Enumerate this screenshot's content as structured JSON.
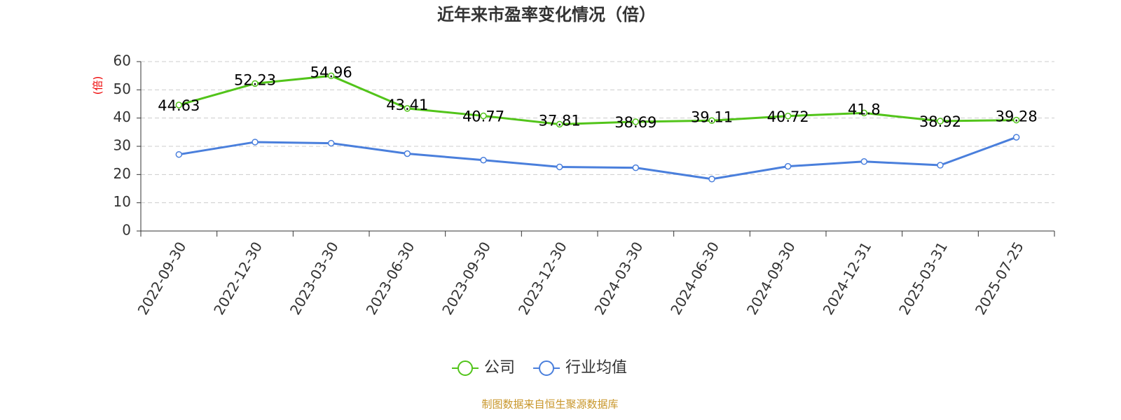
{
  "chart_data": {
    "type": "line",
    "title": "近年来市盈率变化情况（倍）",
    "y_label": "(倍)",
    "source": "制图数据来自恒生聚源数据库",
    "categories": [
      "2022-09-30",
      "2022-12-30",
      "2023-03-30",
      "2023-06-30",
      "2023-09-30",
      "2023-12-30",
      "2024-03-30",
      "2024-06-30",
      "2024-09-30",
      "2024-12-31",
      "2025-03-31",
      "2025-07-25"
    ],
    "series": [
      {
        "name": "公司",
        "color": "#52c41a",
        "values": [
          44.63,
          52.23,
          54.96,
          43.41,
          40.77,
          37.81,
          38.69,
          39.11,
          40.72,
          41.8,
          38.92,
          39.28
        ]
      },
      {
        "name": "行业均值",
        "color": "#4a7fdc",
        "values": [
          27.1,
          31.5,
          31.1,
          27.4,
          25.1,
          22.7,
          22.4,
          18.4,
          22.9,
          24.6,
          23.3,
          33.2
        ]
      }
    ],
    "ylim": [
      0,
      60
    ],
    "yticks": [
      0,
      10,
      20,
      30,
      40,
      50,
      60
    ],
    "grid": true,
    "legend": "bottom"
  }
}
